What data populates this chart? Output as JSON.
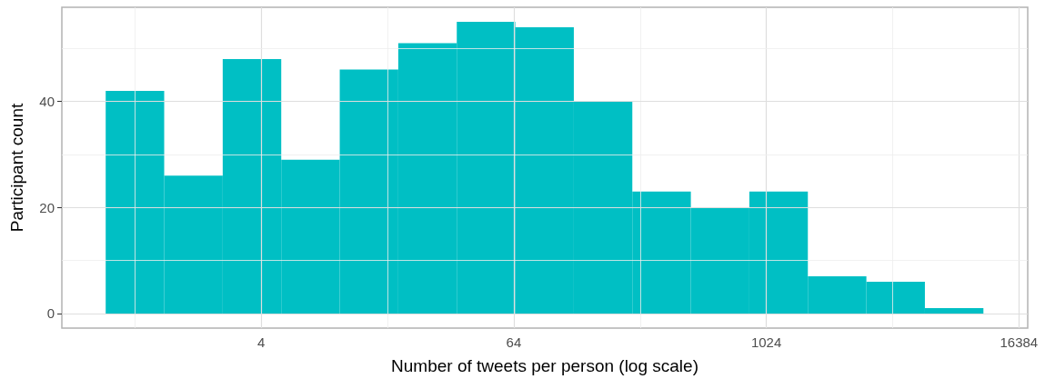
{
  "chart_data": {
    "type": "histogram",
    "xlabel": "Number of tweets per person (log scale)",
    "ylabel": "Participant count",
    "bins": [
      0.725,
      1.378,
      2.62,
      4.981,
      9.469,
      18.0,
      34.22,
      65.05,
      123.7,
      235.1,
      447.0,
      849.7,
      1615,
      3071,
      5838,
      11098
    ],
    "values": [
      42,
      26,
      48,
      29,
      46,
      51,
      55,
      54,
      40,
      23,
      20,
      23,
      7,
      6,
      1
    ],
    "color": "#00bfc4",
    "log": "x",
    "grid": true,
    "xlim": [
      0.448,
      18050
    ],
    "xticks": [
      {
        "value": 1,
        "label": null
      },
      4,
      {
        "value": 16,
        "label": null
      },
      64,
      {
        "value": 256,
        "label": null
      },
      1024,
      {
        "value": 4096,
        "label": null
      },
      16384
    ],
    "ylim": [
      -2.75,
      57.75
    ],
    "yticks": [
      0,
      {
        "value": 10,
        "label": null
      },
      20,
      {
        "value": 30,
        "label": null
      },
      40,
      {
        "value": 50,
        "label": null
      }
    ]
  }
}
